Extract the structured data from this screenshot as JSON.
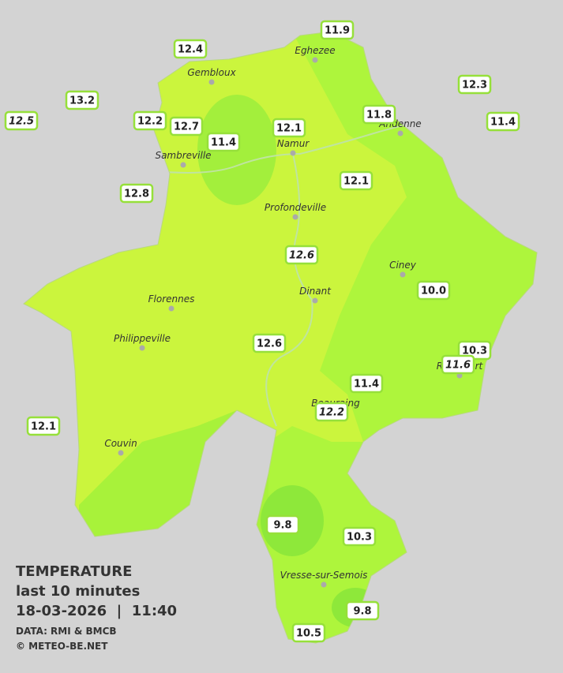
{
  "legend": {
    "title": "TEMPERATURE",
    "subtitle": "last 10 minutes",
    "timestamp": "18-03-2026  |  11:40",
    "source": "DATA: RMI & BMCB",
    "copyright": "© METEO-BE.NET"
  },
  "cities": [
    "Eghezee",
    "Gembloux",
    "Andenne",
    "Namur",
    "Sambreville",
    "Profondeville",
    "Ciney",
    "Dinant",
    "Florennes",
    "Philippeville",
    "Beauraing",
    "Rochefort",
    "Couvin",
    "Vresse-sur-Semois"
  ],
  "readings": [
    {
      "value": "12.4"
    },
    {
      "value": "11.9"
    },
    {
      "value": "13.2"
    },
    {
      "value": "12.5",
      "italic": true
    },
    {
      "value": "12.2"
    },
    {
      "value": "12.7"
    },
    {
      "value": "12.1"
    },
    {
      "value": "11.8"
    },
    {
      "value": "12.3"
    },
    {
      "value": "11.4"
    },
    {
      "value": "11.4"
    },
    {
      "value": "12.8"
    },
    {
      "value": "12.1"
    },
    {
      "value": "12.6",
      "italic": true
    },
    {
      "value": "10.0"
    },
    {
      "value": "12.6"
    },
    {
      "value": "10.3"
    },
    {
      "value": "11.6",
      "italic": true
    },
    {
      "value": "11.4"
    },
    {
      "value": "12.2",
      "italic": true
    },
    {
      "value": "12.1"
    },
    {
      "value": "9.8"
    },
    {
      "value": "10.3"
    },
    {
      "value": "9.8"
    },
    {
      "value": "10.5"
    }
  ]
}
